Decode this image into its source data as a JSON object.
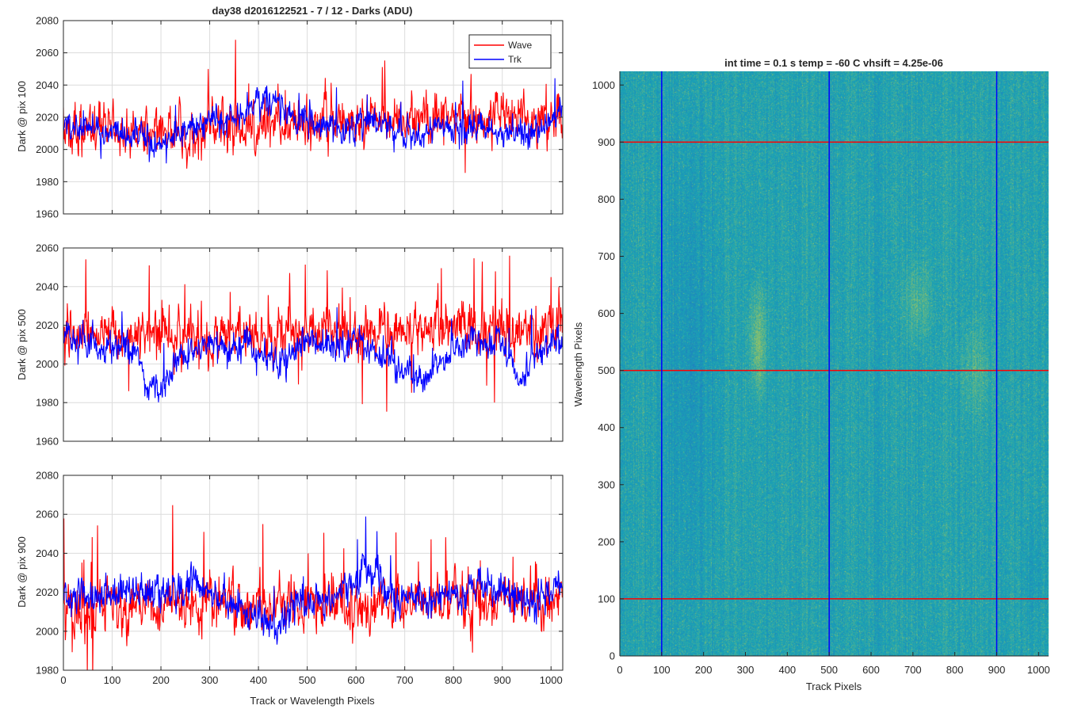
{
  "figure_title": "day38 d2016122521 - 7 / 12 - Darks (ADU)",
  "colors": {
    "wave": "#ff0000",
    "trk": "#0000ff",
    "grid": "#dcdcdc",
    "axis": "#262626",
    "heatmap_base": "#1aa3b4",
    "heatmap_high": "#a6c75a",
    "heatmap_low": "#1f7fc0"
  },
  "chart_data": [
    {
      "type": "line",
      "panel": "top-left",
      "title": "day38 d2016122521 - 7 / 12 - Darks (ADU)",
      "ylabel": "Dark @ pix 100",
      "xlabel": "",
      "xlim": [
        0,
        1024
      ],
      "ylim": [
        1960,
        2080
      ],
      "xticks": [
        0,
        100,
        200,
        300,
        400,
        500,
        600,
        700,
        800,
        900,
        1000
      ],
      "yticks": [
        1960,
        1980,
        2000,
        2020,
        2040,
        2060,
        2080
      ],
      "xtick_labels": [
        "",
        "",
        "",
        "",
        "",
        "",
        "",
        "",
        "",
        "",
        ""
      ],
      "ytick_labels": [
        "1960",
        "1980",
        "2000",
        "2020",
        "2040",
        "2060",
        "2080"
      ],
      "grid": true,
      "legend": {
        "position": "top-right",
        "entries": [
          "Wave",
          "Trk"
        ]
      },
      "series": [
        {
          "name": "Wave",
          "color": "#ff0000",
          "base": 2013,
          "noise": 14,
          "spike_rate": 0.02,
          "spike_amp": 18,
          "segments": [
            [
              0,
              2014
            ],
            [
              200,
              2012
            ],
            [
              400,
              2015
            ],
            [
              600,
              2017
            ],
            [
              800,
              2020
            ],
            [
              1024,
              2022
            ]
          ]
        },
        {
          "name": "Trk",
          "color": "#0000ff",
          "base": 2012,
          "noise": 8,
          "spike_rate": 0.01,
          "spike_amp": 12,
          "segments": [
            [
              0,
              2016
            ],
            [
              160,
              2006
            ],
            [
              200,
              2002
            ],
            [
              260,
              2016
            ],
            [
              330,
              2018
            ],
            [
              420,
              2032
            ],
            [
              470,
              2020
            ],
            [
              560,
              2014
            ],
            [
              620,
              2018
            ],
            [
              700,
              2008
            ],
            [
              780,
              2014
            ],
            [
              880,
              2010
            ],
            [
              960,
              2008
            ],
            [
              1024,
              2024
            ]
          ]
        }
      ]
    },
    {
      "type": "line",
      "panel": "middle-left",
      "ylabel": "Dark @ pix 500",
      "xlabel": "",
      "xlim": [
        0,
        1024
      ],
      "ylim": [
        1960,
        2060
      ],
      "xticks": [
        0,
        100,
        200,
        300,
        400,
        500,
        600,
        700,
        800,
        900,
        1000
      ],
      "yticks": [
        1960,
        1980,
        2000,
        2020,
        2040,
        2060
      ],
      "xtick_labels": [
        "",
        "",
        "",
        "",
        "",
        "",
        "",
        "",
        "",
        "",
        ""
      ],
      "ytick_labels": [
        "1960",
        "1980",
        "2000",
        "2020",
        "2040",
        "2060"
      ],
      "grid": true,
      "series": [
        {
          "name": "Wave",
          "color": "#ff0000",
          "base": 2015,
          "noise": 11,
          "spike_rate": 0.03,
          "spike_amp": 20,
          "segments": [
            [
              0,
              2016
            ],
            [
              300,
              2014
            ],
            [
              600,
              2018
            ],
            [
              1024,
              2018
            ]
          ]
        },
        {
          "name": "Trk",
          "color": "#0000ff",
          "base": 2010,
          "noise": 7,
          "spike_rate": 0.01,
          "spike_amp": 10,
          "segments": [
            [
              0,
              2012
            ],
            [
              150,
              2008
            ],
            [
              170,
              1988
            ],
            [
              200,
              1986
            ],
            [
              240,
              2006
            ],
            [
              380,
              2010
            ],
            [
              440,
              2000
            ],
            [
              500,
              2012
            ],
            [
              560,
              2008
            ],
            [
              600,
              2014
            ],
            [
              720,
              1992
            ],
            [
              760,
              1998
            ],
            [
              820,
              2012
            ],
            [
              900,
              2012
            ],
            [
              940,
              1988
            ],
            [
              960,
              2002
            ],
            [
              1024,
              2014
            ]
          ]
        }
      ]
    },
    {
      "type": "line",
      "panel": "bottom-left",
      "ylabel": "Dark @ pix 900",
      "xlabel": "Track or Wavelength Pixels",
      "xlim": [
        0,
        1024
      ],
      "ylim": [
        1980,
        2080
      ],
      "xticks": [
        0,
        100,
        200,
        300,
        400,
        500,
        600,
        700,
        800,
        900,
        1000
      ],
      "yticks": [
        1980,
        2000,
        2020,
        2040,
        2060,
        2080
      ],
      "xtick_labels": [
        "0",
        "100",
        "200",
        "300",
        "400",
        "500",
        "600",
        "700",
        "800",
        "900",
        "1000"
      ],
      "ytick_labels": [
        "1980",
        "2000",
        "2020",
        "2040",
        "2060",
        "2080"
      ],
      "grid": true,
      "series": [
        {
          "name": "Wave",
          "color": "#ff0000",
          "base": 2012,
          "noise": 12,
          "spike_rate": 0.02,
          "spike_amp": 22,
          "segments": [
            [
              0,
              2012
            ],
            [
              400,
              2014
            ],
            [
              700,
              2014
            ],
            [
              1024,
              2016
            ]
          ]
        },
        {
          "name": "Trk",
          "color": "#0000ff",
          "base": 2018,
          "noise": 8,
          "spike_rate": 0.01,
          "spike_amp": 12,
          "segments": [
            [
              0,
              2018
            ],
            [
              240,
              2020
            ],
            [
              270,
              2028
            ],
            [
              300,
              2018
            ],
            [
              360,
              2012
            ],
            [
              440,
              2002
            ],
            [
              480,
              2014
            ],
            [
              560,
              2020
            ],
            [
              620,
              2030
            ],
            [
              680,
              2020
            ],
            [
              760,
              2016
            ],
            [
              860,
              2024
            ],
            [
              960,
              2016
            ],
            [
              1024,
              2022
            ]
          ]
        }
      ]
    },
    {
      "type": "heatmap",
      "panel": "right",
      "title": "int time = 0.1 s   temp = -60 C   vhsift = 4.25e-06",
      "xlabel": "Track Pixels",
      "ylabel": "Wavelength Pixels",
      "xlim": [
        0,
        1024
      ],
      "ylim": [
        0,
        1024
      ],
      "xticks": [
        0,
        100,
        200,
        300,
        400,
        500,
        600,
        700,
        800,
        900,
        1000
      ],
      "yticks": [
        0,
        100,
        200,
        300,
        400,
        500,
        600,
        700,
        800,
        900,
        1000
      ],
      "xtick_labels": [
        "0",
        "100",
        "200",
        "300",
        "400",
        "500",
        "600",
        "700",
        "800",
        "900",
        "1000"
      ],
      "ytick_labels": [
        "0",
        "100",
        "200",
        "300",
        "400",
        "500",
        "600",
        "700",
        "800",
        "900",
        "1000"
      ],
      "grid": false,
      "overlay_lines": {
        "vertical_x": [
          100,
          500,
          900
        ],
        "vertical_color": "#0000ff",
        "horizontal_y": [
          100,
          500,
          900
        ],
        "horizontal_color": "#ff0000"
      },
      "features": [
        {
          "kind": "bright-blob",
          "x": [
            300,
            360
          ],
          "y": [
            420,
            680
          ],
          "strength": 0.55
        },
        {
          "kind": "bright-blob",
          "x": [
            660,
            760
          ],
          "y": [
            520,
            720
          ],
          "strength": 0.35
        },
        {
          "kind": "bright-blob",
          "x": [
            800,
            900
          ],
          "y": [
            380,
            620
          ],
          "strength": 0.3
        },
        {
          "kind": "dark-band",
          "x": [
            80,
            260
          ],
          "y": [
            0,
            1024
          ],
          "strength": 0.25
        },
        {
          "kind": "dark-band",
          "x": [
            950,
            1024
          ],
          "y": [
            0,
            300
          ],
          "strength": 0.15
        }
      ]
    }
  ]
}
